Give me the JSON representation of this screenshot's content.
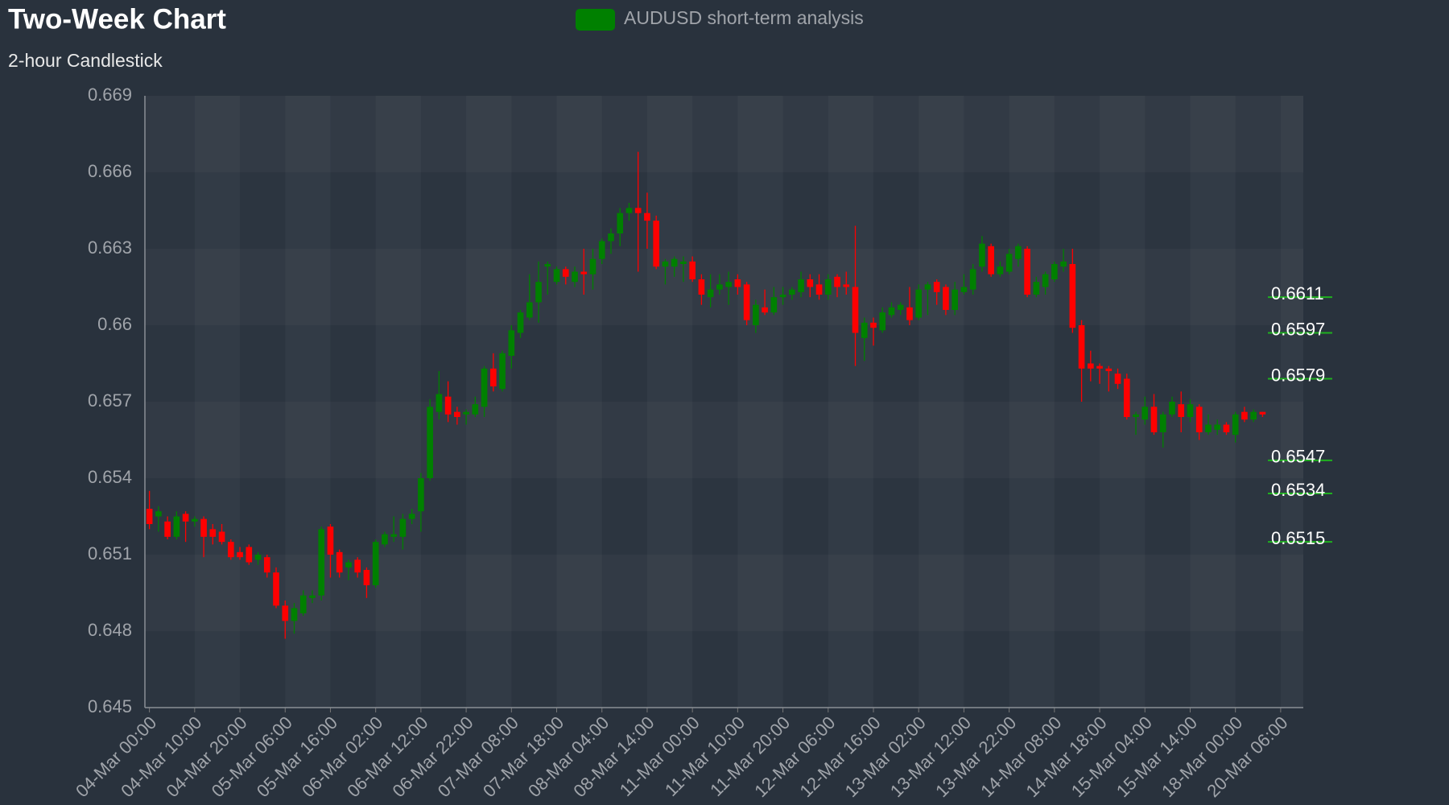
{
  "chart_data": {
    "type": "candlestick",
    "title": "Two-Week Chart",
    "subtitle": "2-hour Candlestick",
    "series": [
      {
        "name": "AUDUSD short-term analysis",
        "color": "#008000",
        "up_color": "#008000",
        "down_color": "#ff0000",
        "open": [
          0.6528,
          0.6525,
          0.6523,
          0.6517,
          0.6526,
          0.6523,
          0.6524,
          0.652,
          0.6519,
          0.6515,
          0.6511,
          0.6513,
          0.6508,
          0.6509,
          0.6503,
          0.649,
          0.6484,
          0.6487,
          0.6493,
          0.6494,
          0.6521,
          0.6511,
          0.6505,
          0.6508,
          0.6504,
          0.6498,
          0.6514,
          0.6517,
          0.6517,
          0.6524,
          0.6527,
          0.654,
          0.6566,
          0.6572,
          0.6566,
          0.6565,
          0.6565,
          0.6568,
          0.6583,
          0.6575,
          0.6588,
          0.6597,
          0.6603,
          0.6609,
          0.6623,
          0.6617,
          0.6622,
          0.6617,
          0.6621,
          0.662,
          0.6626,
          0.6633,
          0.6636,
          0.6644,
          0.6646,
          0.6644,
          0.6641,
          0.6623,
          0.6623,
          0.6624,
          0.6625,
          0.6618,
          0.6611,
          0.6614,
          0.6615,
          0.6618,
          0.6616,
          0.66,
          0.6607,
          0.6605,
          0.6611,
          0.6612,
          0.6613,
          0.6618,
          0.6616,
          0.6612,
          0.6619,
          0.6616,
          0.6615,
          0.6595,
          0.6601,
          0.6598,
          0.6604,
          0.6606,
          0.6607,
          0.6603,
          0.6614,
          0.6617,
          0.6615,
          0.6606,
          0.6613,
          0.6614,
          0.6623,
          0.6631,
          0.662,
          0.6621,
          0.6626,
          0.663,
          0.6612,
          0.6615,
          0.6618,
          0.6623,
          0.6624,
          0.66,
          0.6585,
          0.6584,
          0.6583,
          0.6581,
          0.6579,
          0.6564,
          0.6563,
          0.6568,
          0.6558,
          0.6565,
          0.6569,
          0.6564,
          0.6568,
          0.6558,
          0.6559,
          0.6561,
          0.6557,
          0.6566,
          0.6563,
          0.6566
        ],
        "high": [
          0.6535,
          0.6529,
          0.6525,
          0.6527,
          0.6527,
          0.6525,
          0.6525,
          0.6522,
          0.6522,
          0.6516,
          0.6513,
          0.6514,
          0.6511,
          0.651,
          0.6505,
          0.6492,
          0.6491,
          0.6496,
          0.6496,
          0.6521,
          0.6522,
          0.6512,
          0.6508,
          0.6509,
          0.6505,
          0.6516,
          0.6519,
          0.6525,
          0.6526,
          0.6528,
          0.6542,
          0.6571,
          0.6582,
          0.6578,
          0.6568,
          0.6567,
          0.6572,
          0.6584,
          0.6589,
          0.659,
          0.66,
          0.6606,
          0.662,
          0.6625,
          0.6625,
          0.6623,
          0.6623,
          0.6623,
          0.663,
          0.663,
          0.6634,
          0.6638,
          0.6646,
          0.6648,
          0.6668,
          0.6652,
          0.6643,
          0.6626,
          0.6627,
          0.6627,
          0.6627,
          0.662,
          0.662,
          0.662,
          0.6621,
          0.662,
          0.6617,
          0.661,
          0.6614,
          0.6615,
          0.6615,
          0.6615,
          0.6621,
          0.662,
          0.662,
          0.662,
          0.662,
          0.6621,
          0.6639,
          0.6603,
          0.6603,
          0.6607,
          0.6609,
          0.6609,
          0.6615,
          0.6616,
          0.6617,
          0.6618,
          0.6616,
          0.6617,
          0.662,
          0.6624,
          0.6635,
          0.6632,
          0.6625,
          0.663,
          0.6632,
          0.6631,
          0.6619,
          0.6621,
          0.6625,
          0.663,
          0.663,
          0.6602,
          0.659,
          0.6585,
          0.6584,
          0.6583,
          0.6581,
          0.6566,
          0.6572,
          0.6573,
          0.6566,
          0.6572,
          0.6574,
          0.6571,
          0.6569,
          0.6565,
          0.6563,
          0.6562,
          0.6566,
          0.6568,
          0.6567,
          0.6566
        ],
        "low": [
          0.652,
          0.6519,
          0.6516,
          0.6516,
          0.6515,
          0.6521,
          0.6509,
          0.6514,
          0.6514,
          0.6508,
          0.6508,
          0.6506,
          0.6506,
          0.6501,
          0.6489,
          0.6477,
          0.6479,
          0.6486,
          0.6491,
          0.6492,
          0.6501,
          0.6501,
          0.65,
          0.6501,
          0.6493,
          0.6497,
          0.6513,
          0.6515,
          0.6512,
          0.6522,
          0.6519,
          0.6539,
          0.6563,
          0.6562,
          0.6561,
          0.6561,
          0.6564,
          0.6564,
          0.6574,
          0.6574,
          0.6583,
          0.6595,
          0.6602,
          0.6601,
          0.6612,
          0.6616,
          0.6616,
          0.6615,
          0.6612,
          0.6614,
          0.6624,
          0.6628,
          0.6631,
          0.6641,
          0.6621,
          0.663,
          0.6622,
          0.6616,
          0.6619,
          0.6617,
          0.6617,
          0.6608,
          0.6607,
          0.6612,
          0.6608,
          0.6612,
          0.66,
          0.6597,
          0.6604,
          0.6604,
          0.6608,
          0.661,
          0.6611,
          0.6611,
          0.661,
          0.661,
          0.6611,
          0.6612,
          0.6584,
          0.6586,
          0.6592,
          0.6597,
          0.6603,
          0.6604,
          0.66,
          0.6602,
          0.6604,
          0.6608,
          0.6604,
          0.6604,
          0.6612,
          0.6612,
          0.6621,
          0.6619,
          0.6619,
          0.662,
          0.6623,
          0.6611,
          0.6611,
          0.6612,
          0.6617,
          0.6621,
          0.6597,
          0.657,
          0.6578,
          0.6577,
          0.6574,
          0.6575,
          0.6563,
          0.6557,
          0.6561,
          0.6557,
          0.6552,
          0.6564,
          0.6558,
          0.6562,
          0.6555,
          0.6557,
          0.6557,
          0.6557,
          0.6554,
          0.6562,
          0.6562,
          0.6564
        ],
        "close": [
          0.6522,
          0.6527,
          0.6517,
          0.6525,
          0.6523,
          0.6524,
          0.6517,
          0.6517,
          0.6515,
          0.6509,
          0.6509,
          0.6507,
          0.651,
          0.6503,
          0.649,
          0.6484,
          0.6489,
          0.6494,
          0.6494,
          0.652,
          0.651,
          0.6503,
          0.6507,
          0.6503,
          0.6498,
          0.6515,
          0.6518,
          0.6518,
          0.6524,
          0.6526,
          0.654,
          0.6568,
          0.6573,
          0.6565,
          0.6564,
          0.6566,
          0.6569,
          0.6583,
          0.6576,
          0.6589,
          0.6598,
          0.6605,
          0.6609,
          0.6617,
          0.6624,
          0.6622,
          0.6619,
          0.6621,
          0.662,
          0.6626,
          0.6633,
          0.6636,
          0.6644,
          0.6646,
          0.6644,
          0.6641,
          0.6623,
          0.6625,
          0.6626,
          0.6625,
          0.6618,
          0.6612,
          0.6614,
          0.6616,
          0.6617,
          0.6615,
          0.6602,
          0.6608,
          0.6605,
          0.6611,
          0.6612,
          0.6614,
          0.6618,
          0.6615,
          0.6612,
          0.6618,
          0.6615,
          0.6615,
          0.6597,
          0.6601,
          0.6599,
          0.6605,
          0.6607,
          0.6608,
          0.6602,
          0.6614,
          0.6616,
          0.6613,
          0.6606,
          0.6614,
          0.6615,
          0.6622,
          0.6632,
          0.662,
          0.6623,
          0.6628,
          0.6631,
          0.6612,
          0.6617,
          0.662,
          0.6624,
          0.6625,
          0.6599,
          0.6583,
          0.6583,
          0.6583,
          0.6582,
          0.6577,
          0.6564,
          0.6565,
          0.6568,
          0.6558,
          0.6565,
          0.657,
          0.6564,
          0.6569,
          0.6558,
          0.6561,
          0.6561,
          0.6558,
          0.6565,
          0.6563,
          0.6566,
          0.6565
        ]
      }
    ],
    "x": [
      0,
      1,
      2,
      3,
      4,
      5,
      6,
      7,
      8,
      9,
      10,
      11,
      12,
      13,
      14,
      15,
      16,
      17,
      18,
      19,
      20,
      21,
      22,
      23,
      24,
      25,
      26,
      27,
      28,
      29,
      30,
      31,
      32,
      33,
      34,
      35,
      36,
      37,
      38,
      39,
      40,
      41,
      42,
      43,
      44,
      45,
      46,
      47,
      48,
      49,
      50,
      51,
      52,
      53,
      54,
      55,
      56,
      57,
      58,
      59,
      60,
      61,
      62,
      63,
      64,
      65,
      66,
      67,
      68,
      69,
      70,
      71,
      72,
      73,
      74,
      75,
      76,
      77,
      78,
      79,
      80,
      81,
      82,
      83,
      84,
      85,
      86,
      87,
      88,
      89,
      90,
      91,
      92,
      93,
      94,
      95,
      96,
      97,
      98,
      99,
      100,
      101,
      102,
      103,
      104,
      105,
      106,
      107,
      108,
      109,
      110,
      111,
      112,
      113,
      114,
      115,
      116,
      117,
      118,
      119,
      120,
      121,
      122,
      123
    ],
    "xlim": [
      -0.5,
      127.5
    ],
    "xticks": [
      {
        "value": 0,
        "label": "04-Mar 00:00"
      },
      {
        "value": 5,
        "label": "04-Mar 10:00"
      },
      {
        "value": 10,
        "label": "04-Mar 20:00"
      },
      {
        "value": 15,
        "label": "05-Mar 06:00"
      },
      {
        "value": 20,
        "label": "05-Mar 16:00"
      },
      {
        "value": 25,
        "label": "06-Mar 02:00"
      },
      {
        "value": 30,
        "label": "06-Mar 12:00"
      },
      {
        "value": 35,
        "label": "06-Mar 22:00"
      },
      {
        "value": 40,
        "label": "07-Mar 08:00"
      },
      {
        "value": 45,
        "label": "07-Mar 18:00"
      },
      {
        "value": 50,
        "label": "08-Mar 04:00"
      },
      {
        "value": 55,
        "label": "08-Mar 14:00"
      },
      {
        "value": 60,
        "label": "11-Mar 00:00"
      },
      {
        "value": 65,
        "label": "11-Mar 10:00"
      },
      {
        "value": 70,
        "label": "11-Mar 20:00"
      },
      {
        "value": 75,
        "label": "12-Mar 06:00"
      },
      {
        "value": 80,
        "label": "12-Mar 16:00"
      },
      {
        "value": 85,
        "label": "13-Mar 02:00"
      },
      {
        "value": 90,
        "label": "13-Mar 12:00"
      },
      {
        "value": 95,
        "label": "13-Mar 22:00"
      },
      {
        "value": 100,
        "label": "14-Mar 08:00"
      },
      {
        "value": 105,
        "label": "14-Mar 18:00"
      },
      {
        "value": 110,
        "label": "15-Mar 04:00"
      },
      {
        "value": 115,
        "label": "15-Mar 14:00"
      },
      {
        "value": 120,
        "label": "18-Mar 00:00"
      },
      {
        "value": 125,
        "label": "20-Mar 06:00"
      }
    ],
    "ylim": [
      0.645,
      0.669
    ],
    "yticks": [
      0.645,
      0.648,
      0.651,
      0.654,
      0.657,
      0.66,
      0.663,
      0.666,
      0.669
    ],
    "grid": true,
    "levels": [
      0.6611,
      0.6597,
      0.6579,
      0.6547,
      0.6534,
      0.6515
    ],
    "level_color": "#1fb01f"
  }
}
